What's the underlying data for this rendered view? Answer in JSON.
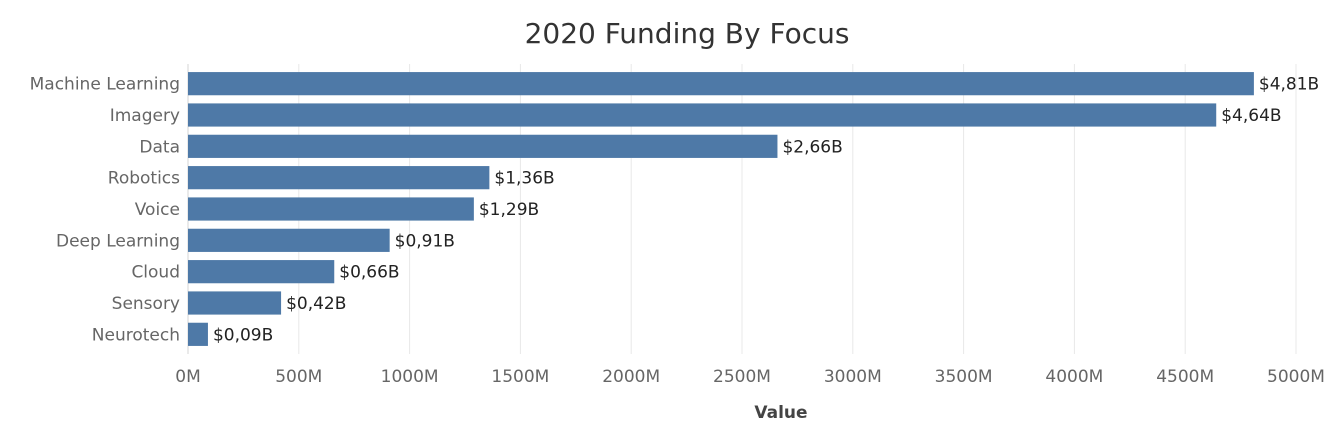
{
  "chart_data": {
    "type": "bar",
    "orientation": "horizontal",
    "title": "2020 Funding By Focus",
    "xlabel": "Value",
    "ylabel": "",
    "xlim": [
      0,
      5000
    ],
    "grid": true,
    "bar_color": "#4e79a7",
    "categories": [
      "Machine Learning",
      "Imagery",
      "Data",
      "Robotics",
      "Voice",
      "Deep Learning",
      "Cloud",
      "Sensory",
      "Neurotech"
    ],
    "values": [
      4810,
      4640,
      2660,
      1360,
      1290,
      910,
      660,
      420,
      90
    ],
    "value_labels": [
      "$4,81B",
      "$4,64B",
      "$2,66B",
      "$1,36B",
      "$1,29B",
      "$0,91B",
      "$0,66B",
      "$0,42B",
      "$0,09B"
    ],
    "ticks": [
      0,
      500,
      1000,
      1500,
      2000,
      2500,
      3000,
      3500,
      4000,
      4500,
      5000
    ],
    "tick_labels": [
      "0M",
      "500M",
      "1000M",
      "1500M",
      "2000M",
      "2500M",
      "3000M",
      "3500M",
      "4000M",
      "4500M",
      "5000M"
    ]
  }
}
